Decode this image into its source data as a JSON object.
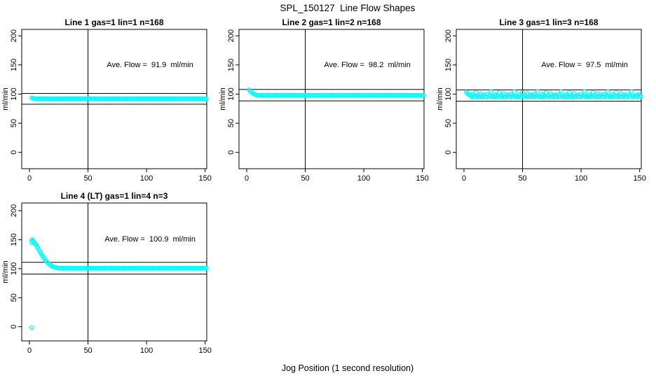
{
  "chart_data": {
    "type": "scatter",
    "title": "SPL_150127  Line Flow Shapes",
    "xlabel": "Jog Position (1 second resolution)",
    "ylabel": "ml/min",
    "point_color": "#00FFFF",
    "line_color": "#000000",
    "x_ticks": [
      0,
      50,
      100,
      150
    ],
    "y_ticks": [
      0,
      50,
      100,
      150,
      200
    ],
    "xlim": [
      -6.6,
      151.4
    ],
    "vline_x": 50,
    "grid": false,
    "legend": "none",
    "panels": [
      {
        "title": "Line 1 gas=1 lin=1 n=168",
        "ave_label": "Ave. Flow =  91.9  ml/min",
        "ave_flow": 91.9,
        "ref_upper": 101.1,
        "ref_lower": 82.7,
        "ylim": [
          -28,
          211
        ],
        "x_start": 2,
        "x_step": 1,
        "y": [
          93.6,
          93,
          92.6,
          92.2,
          91.8,
          92,
          92.3,
          91.7,
          92.1,
          91.9,
          92.4,
          91.8,
          92.2,
          91.9,
          92,
          92.2,
          91.8,
          92,
          92.3,
          91.7,
          92.1,
          91.9,
          92.4,
          91.8,
          92.2,
          91.9,
          92,
          92.2,
          91.8,
          92,
          92.3,
          91.7,
          92.1,
          91.9,
          92.4,
          91.8,
          92.2,
          91.9,
          92,
          92.2,
          91.8,
          92,
          92.3,
          91.7,
          92.1,
          91.9,
          92.4,
          91.8,
          92.2,
          91.9,
          92,
          92.2,
          91.8,
          92,
          92.3,
          91.7,
          92.1,
          91.9,
          92.4,
          91.8,
          92.2,
          91.9,
          92,
          92.2,
          91.8,
          92,
          92.3,
          91.7,
          92.1,
          91.9,
          92.4,
          91.8,
          92.2,
          91.9,
          92,
          92.2,
          91.8,
          92,
          92.3,
          91.7,
          92.1,
          91.9,
          92.4,
          91.8,
          92.2,
          91.9,
          92,
          92.2,
          91.8,
          92,
          92.3,
          91.7,
          92.1,
          91.9,
          92.4,
          91.8,
          92.2,
          91.9,
          92,
          92.2,
          91.8,
          92,
          92.3,
          91.7,
          92.1,
          91.9,
          92.4,
          91.8,
          92.2,
          91.9,
          92,
          92.2,
          91.8,
          92,
          92.3,
          91.7,
          92.1,
          91.9,
          92.4,
          91.8,
          92.2,
          91.9,
          92,
          92.2,
          91.8,
          92,
          92.3,
          91.7,
          92.1,
          91.9,
          92.4,
          91.8,
          92.2,
          91.9,
          92,
          92.2,
          91.8,
          92,
          92.3,
          91.7,
          92.1,
          91.9,
          92.4,
          91.8,
          92.2,
          91.9,
          92,
          92,
          91.9,
          92.1
        ],
        "extra_points": []
      },
      {
        "title": "Line 2 gas=1 lin=2 n=168",
        "ave_label": "Ave. Flow =  98.2  ml/min",
        "ave_flow": 98.2,
        "ref_upper": 108.0,
        "ref_lower": 88.4,
        "ylim": [
          -28,
          211
        ],
        "x_start": 2,
        "x_step": 1,
        "y": [
          107.5,
          105.5,
          103.5,
          101.8,
          100.4,
          99.4,
          98.8,
          98.4,
          98.2,
          97.8,
          98,
          98.3,
          97.7,
          98.1,
          97.9,
          98.4,
          97.8,
          98.2,
          97.9,
          98,
          98.2,
          97.8,
          98,
          98.3,
          97.7,
          98.1,
          97.9,
          98.4,
          97.8,
          98.2,
          97.9,
          98,
          98.2,
          97.8,
          98,
          98.3,
          97.7,
          98.1,
          97.9,
          98.4,
          97.8,
          98.2,
          97.9,
          98,
          98.2,
          97.8,
          98,
          98.3,
          97.7,
          98.1,
          97.9,
          98.4,
          97.8,
          98.2,
          97.9,
          98,
          98.2,
          97.8,
          98,
          98.3,
          97.7,
          98.1,
          97.9,
          98.4,
          97.8,
          98.2,
          97.9,
          98,
          98.2,
          97.8,
          98,
          98.3,
          97.7,
          98.1,
          97.9,
          98.4,
          97.8,
          98.2,
          97.9,
          98,
          98.2,
          97.8,
          98,
          98.3,
          97.7,
          98.1,
          97.9,
          98.4,
          97.8,
          98.2,
          97.9,
          98,
          98.2,
          97.8,
          98,
          98.3,
          97.7,
          98.1,
          97.9,
          98.4,
          97.8,
          98.2,
          97.9,
          98,
          98.2,
          97.8,
          98,
          98.3,
          97.7,
          98.1,
          97.9,
          98.4,
          97.8,
          98.2,
          97.9,
          98,
          98.2,
          97.8,
          98,
          98.3,
          97.7,
          98.1,
          97.9,
          98.4,
          97.8,
          98.2,
          97.9,
          98,
          98.2,
          97.8,
          98,
          98.3,
          97.7,
          98.1,
          97.9,
          98.4,
          97.8,
          98.2,
          97.9,
          98,
          98,
          97.9,
          98.1,
          97.8,
          98,
          98.2,
          97.9,
          98,
          97.8,
          97.6
        ],
        "extra_points": []
      },
      {
        "title": "Line 3 gas=1 lin=3 n=168",
        "ave_label": "Ave. Flow =  97.5  ml/min",
        "ave_flow": 97.5,
        "ref_upper": 107.3,
        "ref_lower": 87.8,
        "ylim": [
          -28,
          211
        ],
        "x_start": 2,
        "x_step": 1,
        "y": [
          103.5,
          101.5,
          99.5,
          98.5,
          96,
          99.5,
          95.5,
          97.5,
          103,
          96,
          98,
          95.3,
          101,
          96.5,
          95.8,
          99,
          96.8,
          95.5,
          100,
          96.2,
          97,
          104.5,
          95.6,
          96.6,
          96,
          99.5,
          95.5,
          97.5,
          103,
          96,
          98,
          95.3,
          101,
          96.5,
          95.8,
          99,
          96.8,
          95.5,
          100,
          96.2,
          97,
          104.5,
          95.6,
          96.6,
          96,
          99.5,
          95.5,
          97.5,
          103,
          96,
          98,
          95.3,
          101,
          96.5,
          95.8,
          99,
          96.8,
          95.5,
          100,
          96.2,
          97,
          104.5,
          95.6,
          96.6,
          96,
          99.5,
          95.5,
          97.5,
          103,
          96,
          98,
          95.3,
          101,
          96.5,
          95.8,
          99,
          96.8,
          95.5,
          100,
          96.2,
          97,
          104.5,
          95.6,
          96.6,
          96,
          99.5,
          95.5,
          97.5,
          103,
          96,
          98,
          95.3,
          101,
          96.5,
          95.8,
          99,
          96.8,
          95.5,
          100,
          96.2,
          97,
          104.5,
          95.6,
          96.6,
          96,
          99.5,
          95.5,
          97.5,
          103,
          96,
          98,
          95.3,
          101,
          96.5,
          95.8,
          99,
          96.8,
          95.5,
          100,
          96.2,
          97,
          104.5,
          95.6,
          96.6,
          96,
          99.5,
          95.5,
          97.5,
          103,
          96,
          98,
          95.3,
          101,
          96.5,
          95.8,
          99,
          96.8,
          95.5,
          100,
          96.2,
          97,
          104.5,
          95.6,
          96.6,
          96.5,
          98.5,
          95.8,
          99.5,
          96.8,
          96.3
        ],
        "extra_points": []
      },
      {
        "title": "Line 4 (LT) gas=1 lin=4 n=3",
        "ave_label": "Ave. Flow =  100.9  ml/min",
        "ave_flow": 100.9,
        "ref_upper": 111.0,
        "ref_lower": 90.8,
        "ylim": [
          -24.5,
          213.2
        ],
        "x_start": 2,
        "x_step": 1,
        "y": [
          149,
          147.5,
          145.5,
          143,
          140,
          136.5,
          133,
          129.5,
          126,
          122.5,
          119.5,
          116.5,
          114,
          111.5,
          109.5,
          107.5,
          106,
          104.8,
          103.8,
          103,
          102.4,
          101.9,
          101.5,
          100.9,
          100.5,
          100.8,
          101.1,
          100.4,
          100.7,
          100.6,
          101,
          100.5,
          100.9,
          100.6,
          100.8,
          100.9,
          100.5,
          100.8,
          101.1,
          100.4,
          100.7,
          100.6,
          101,
          100.5,
          100.9,
          100.6,
          100.8,
          100.9,
          100.5,
          100.8,
          101.1,
          100.4,
          100.7,
          100.6,
          101,
          100.5,
          100.9,
          100.6,
          100.8,
          100.9,
          100.5,
          100.8,
          101.1,
          100.4,
          100.7,
          100.6,
          101,
          100.5,
          100.9,
          100.6,
          100.8,
          100.9,
          100.5,
          100.8,
          101.1,
          100.4,
          100.7,
          100.6,
          101,
          100.5,
          100.9,
          100.6,
          100.8,
          100.9,
          100.5,
          100.8,
          101.1,
          100.4,
          100.7,
          100.6,
          101,
          100.5,
          100.9,
          100.6,
          100.8,
          100.9,
          100.5,
          100.8,
          101.1,
          100.4,
          100.7,
          100.6,
          101,
          100.5,
          100.9,
          100.6,
          100.8,
          100.9,
          100.5,
          100.8,
          101.1,
          100.4,
          100.7,
          100.6,
          101,
          100.5,
          100.9,
          100.6,
          100.8,
          100.9,
          100.5,
          100.8,
          101.1,
          100.4,
          100.7,
          100.6,
          101,
          100.5,
          100.9,
          100.6,
          100.8,
          100.9,
          100.5,
          100.8,
          101.1,
          100.4,
          100.7,
          100.6,
          101,
          100.5,
          100.9,
          100.6,
          100.8,
          100.7,
          100.5,
          100.8,
          100.6,
          100.9,
          100.5,
          100.7
        ],
        "extra_points": [
          [
            2,
            -1.5
          ],
          [
            2.3,
            150
          ],
          [
            3.1,
            147.5
          ],
          [
            2.2,
            144.5
          ]
        ]
      }
    ]
  }
}
